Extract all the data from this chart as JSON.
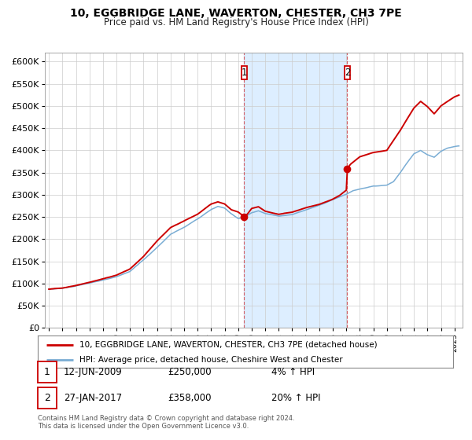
{
  "title": "10, EGGBRIDGE LANE, WAVERTON, CHESTER, CH3 7PE",
  "subtitle": "Price paid vs. HM Land Registry's House Price Index (HPI)",
  "legend_line1": "10, EGGBRIDGE LANE, WAVERTON, CHESTER, CH3 7PE (detached house)",
  "legend_line2": "HPI: Average price, detached house, Cheshire West and Chester",
  "annotation1_date": "12-JUN-2009",
  "annotation1_price": "£250,000",
  "annotation1_hpi": "4% ↑ HPI",
  "annotation2_date": "27-JAN-2017",
  "annotation2_price": "£358,000",
  "annotation2_hpi": "20% ↑ HPI",
  "footnote": "Contains HM Land Registry data © Crown copyright and database right 2024.\nThis data is licensed under the Open Government Licence v3.0.",
  "hpi_color": "#7aadd4",
  "price_color": "#cc0000",
  "dot_color": "#cc0000",
  "shaded_color": "#ddeeff",
  "annotation_box_color": "#cc0000",
  "background_color": "#ffffff",
  "grid_color": "#cccccc",
  "ylim": [
    0,
    620000
  ],
  "yticks": [
    0,
    50000,
    100000,
    150000,
    200000,
    250000,
    300000,
    350000,
    400000,
    450000,
    500000,
    550000,
    600000
  ],
  "xlim_start": 1994.7,
  "xlim_end": 2025.6,
  "vline1_x": 2009.44,
  "vline2_x": 2017.07,
  "dot1_x": 2009.44,
  "dot1_y": 250000,
  "dot2_x": 2017.07,
  "dot2_y": 358000
}
